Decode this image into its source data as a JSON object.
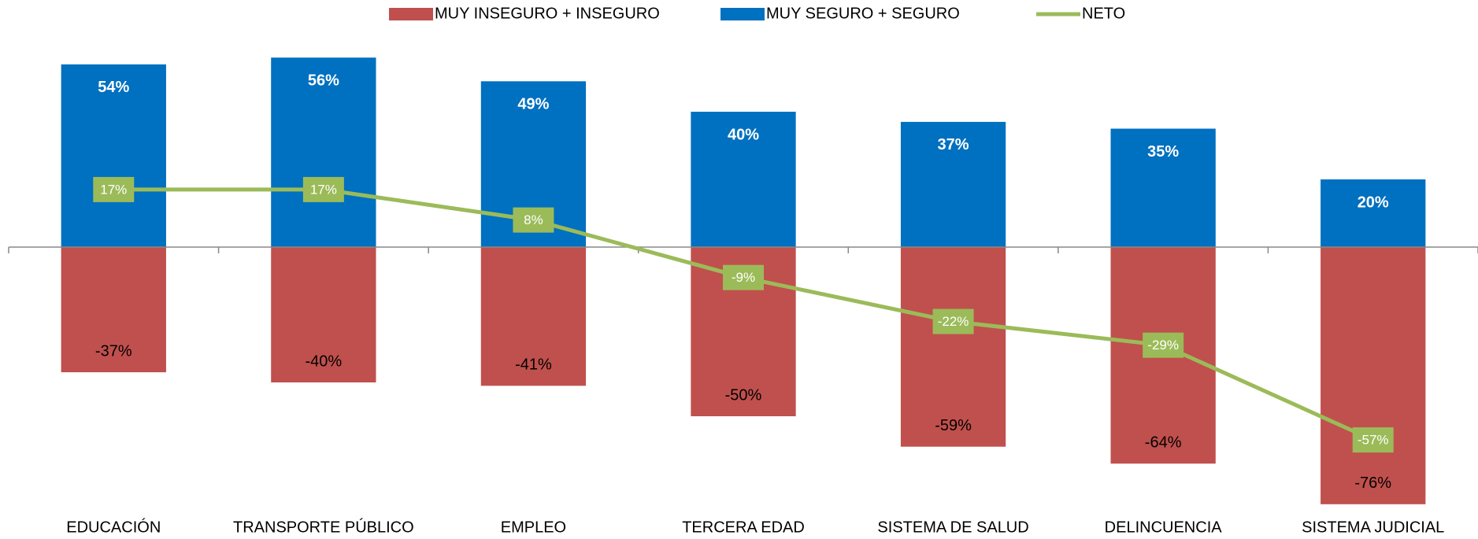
{
  "chart_data": {
    "type": "bar",
    "categories": [
      "EDUCACIÓN",
      "TRANSPORTE PÚBLICO",
      "EMPLEO",
      "TERCERA EDAD",
      "SISTEMA DE SALUD",
      "DELINCUENCIA",
      "SISTEMA JUDICIAL"
    ],
    "series": [
      {
        "name": "MUY INSEGURO + INSEGURO",
        "color": "#c0504d",
        "type": "bar",
        "values": [
          -37,
          -40,
          -41,
          -50,
          -59,
          -64,
          -76
        ],
        "value_labels": [
          "-37%",
          "-40%",
          "-41%",
          "-50%",
          "-59%",
          "-64%",
          "-76%"
        ]
      },
      {
        "name": "MUY SEGURO + SEGURO",
        "color": "#0070c0",
        "type": "bar",
        "values": [
          54,
          56,
          49,
          40,
          37,
          35,
          20
        ],
        "value_labels": [
          "54%",
          "56%",
          "49%",
          "40%",
          "37%",
          "35%",
          "20%"
        ]
      },
      {
        "name": "NETO",
        "color": "#9bbb59",
        "type": "line",
        "values": [
          17,
          17,
          8,
          -9,
          -22,
          -29,
          -57
        ],
        "value_labels": [
          "17%",
          "17%",
          "8%",
          "-9%",
          "-22%",
          "-29%",
          "-57%"
        ]
      }
    ],
    "ylim": [
      -80,
      60
    ],
    "legend": "top"
  }
}
